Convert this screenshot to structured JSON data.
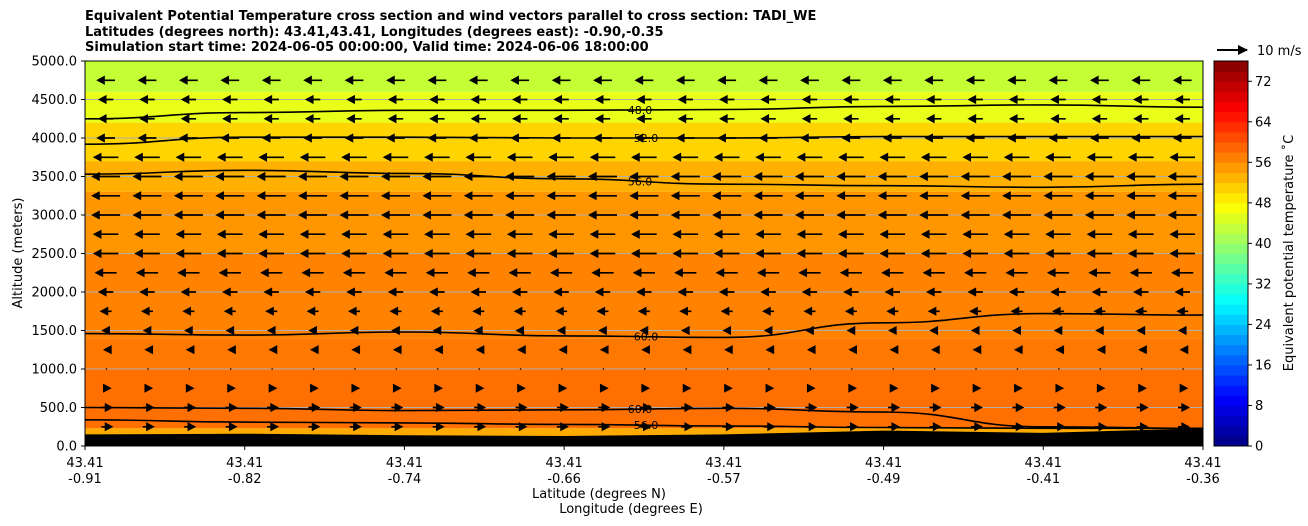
{
  "title_lines": [
    "Equivalent Potential Temperature cross section and wind vectors parallel to cross section: TADI_WE",
    "Latitudes (degrees north): 43.41,43.41, Longitudes (degrees east): -0.90,-0.35",
    "Simulation start time: 2024-06-05 00:00:00, Valid time: 2024-06-06 18:00:00"
  ],
  "chart_data": {
    "type": "heatmap",
    "title": "Equivalent Potential Temperature cross section and wind vectors parallel to cross section: TADI_WE",
    "ylabel": "Altitude (meters)",
    "xlabel_lines": [
      "Latitude (degrees N)",
      "Longitude (degrees E)"
    ],
    "ylim": [
      0,
      5000
    ],
    "yticks": [
      "0.0",
      "500.0",
      "1000.0",
      "1500.0",
      "2000.0",
      "2500.0",
      "3000.0",
      "3500.0",
      "4000.0",
      "4500.0",
      "5000.0"
    ],
    "xticks": [
      {
        "lat": "43.41",
        "lon": "-0.91"
      },
      {
        "lat": "43.41",
        "lon": "-0.82"
      },
      {
        "lat": "43.41",
        "lon": "-0.74"
      },
      {
        "lat": "43.41",
        "lon": "-0.66"
      },
      {
        "lat": "43.41",
        "lon": "-0.57"
      },
      {
        "lat": "43.41",
        "lon": "-0.49"
      },
      {
        "lat": "43.41",
        "lon": "-0.41"
      },
      {
        "lat": "43.41",
        "lon": "-0.36"
      }
    ],
    "colorbar": {
      "label": "Equivalent potential temperature ˚C",
      "range": [
        0,
        76
      ],
      "ticks": [
        "0",
        "8",
        "16",
        "24",
        "32",
        "40",
        "48",
        "56",
        "64",
        "72"
      ],
      "colormap": "jet"
    },
    "grid": "horizontal",
    "quiver_key": "10 m/s",
    "field_bands": [
      {
        "from": 0,
        "to": 230,
        "value": 56,
        "color": "#ffaa00"
      },
      {
        "from": 230,
        "to": 1000,
        "value": 60,
        "color": "#ff7000"
      },
      {
        "from": 1000,
        "to": 1400,
        "value": 60,
        "color": "#ff7800"
      },
      {
        "from": 1400,
        "to": 2500,
        "value": 59,
        "color": "#ff8200"
      },
      {
        "from": 2500,
        "to": 3300,
        "value": 57,
        "color": "#ff9600"
      },
      {
        "from": 3300,
        "to": 3700,
        "value": 55,
        "color": "#ffb000"
      },
      {
        "from": 3700,
        "to": 4200,
        "value": 52,
        "color": "#ffd400"
      },
      {
        "from": 4200,
        "to": 4600,
        "value": 49,
        "color": "#e9ff1a"
      },
      {
        "from": 4600,
        "to": 5000,
        "value": 47,
        "color": "#c4ff36"
      }
    ],
    "contours": [
      {
        "label": "48.0",
        "heights": [
          4250,
          4330,
          4360,
          4360,
          4370,
          4410,
          4430,
          4400
        ]
      },
      {
        "label": "52.0",
        "heights": [
          3920,
          4010,
          4010,
          4000,
          4000,
          4020,
          4020,
          4020
        ]
      },
      {
        "label": "56.0",
        "heights": [
          3530,
          3580,
          3540,
          3470,
          3400,
          3380,
          3360,
          3400
        ]
      },
      {
        "label": "60.0",
        "heights": [
          1460,
          1440,
          1480,
          1430,
          1410,
          1600,
          1720,
          1700
        ]
      },
      {
        "label": "60.0",
        "heights": [
          500,
          490,
          460,
          470,
          490,
          440,
          250,
          230
        ]
      },
      {
        "label": "56.0",
        "heights": [
          340,
          310,
          300,
          280,
          260,
          240,
          230,
          230
        ]
      }
    ],
    "terrain_heights": [
      150,
      160,
      140,
      130,
      150,
      200,
      170,
      230
    ],
    "wind_rows": [
      {
        "height": 4750,
        "u": -5
      },
      {
        "height": 4500,
        "u": -4
      },
      {
        "height": 4250,
        "u": -4
      },
      {
        "height": 4000,
        "u": -5
      },
      {
        "height": 3750,
        "u": -7
      },
      {
        "height": 3500,
        "u": -8
      },
      {
        "height": 3250,
        "u": -8
      },
      {
        "height": 3000,
        "u": -8
      },
      {
        "height": 2750,
        "u": -7
      },
      {
        "height": 2500,
        "u": -7
      },
      {
        "height": 2250,
        "u": -6
      },
      {
        "height": 2000,
        "u": -4
      },
      {
        "height": 1750,
        "u": -3
      },
      {
        "height": 1500,
        "u": -2
      },
      {
        "height": 1250,
        "u": -1
      },
      {
        "height": 1000,
        "u": 0
      },
      {
        "height": 750,
        "u": 2
      },
      {
        "height": 500,
        "u": 3
      },
      {
        "height": 250,
        "u": 3
      }
    ]
  }
}
